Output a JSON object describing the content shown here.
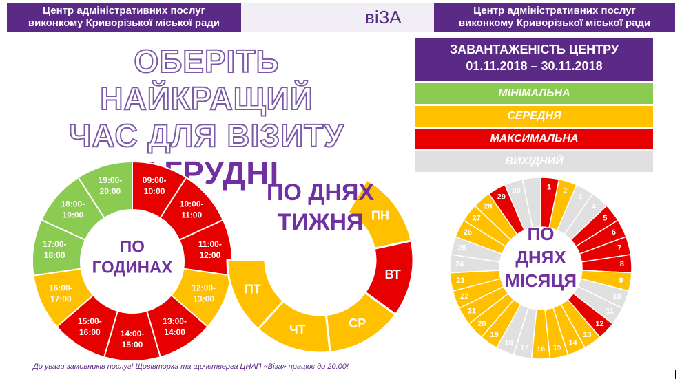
{
  "header": {
    "left_line1": "Центр адміністративних послуг",
    "left_line2": "виконкому Криворізької міської ради",
    "brand": "віЗА",
    "right_line1": "Центр адміністративних послуг",
    "right_line2": "виконкому Криворізької міської ради"
  },
  "title": {
    "line1": "ОБЕРІТЬ НАЙКРАЩИЙ",
    "line2": "ЧАС ДЛЯ ВІЗИТУ",
    "line3": "У ГРУДНІ"
  },
  "legend": {
    "heading_line1": "ЗАВАНТАЖЕНІСТЬ ЦЕНТРУ",
    "heading_line2": "01.11.2018 – 30.11.2018",
    "levels": [
      {
        "label": "МІНІМАЛЬНА",
        "color": "#8ccb52"
      },
      {
        "label": "СЕРЕДНЯ",
        "color": "#ffc000"
      },
      {
        "label": "МАКСИМАЛЬНА",
        "color": "#e60000"
      },
      {
        "label": "ВИХІДНИЙ",
        "color": "#e0e0e0"
      }
    ]
  },
  "colors": {
    "min": "#8ccb52",
    "mid": "#ffc000",
    "max": "#e60000",
    "off": "#e0e0e0",
    "purple": "#7030a0"
  },
  "hours": {
    "center_line1": "ПО",
    "center_line2": "ГОДИНАХ",
    "slots": [
      {
        "l1": "09:00-",
        "l2": "10:00",
        "level": "max"
      },
      {
        "l1": "10:00-",
        "l2": "11:00",
        "level": "max"
      },
      {
        "l1": "11:00-",
        "l2": "12:00",
        "level": "max"
      },
      {
        "l1": "12:00-",
        "l2": "13:00",
        "level": "mid"
      },
      {
        "l1": "13:00-",
        "l2": "14:00",
        "level": "max"
      },
      {
        "l1": "14:00-",
        "l2": "15:00",
        "level": "max"
      },
      {
        "l1": "15:00-",
        "l2": "16:00",
        "level": "max"
      },
      {
        "l1": "16:00-",
        "l2": "17:00",
        "level": "mid"
      },
      {
        "l1": "17:00-",
        "l2": "18:00",
        "level": "min"
      },
      {
        "l1": "18:00-",
        "l2": "19:00",
        "level": "min"
      },
      {
        "l1": "19:00-",
        "l2": "20:00",
        "level": "min"
      }
    ]
  },
  "weekdays": {
    "title_line1": "ПО ДНЯХ",
    "title_line2": "ТИЖНЯ",
    "days": [
      {
        "label": "ПН",
        "level": "mid"
      },
      {
        "label": "ВТ",
        "level": "max"
      },
      {
        "label": "СР",
        "level": "mid"
      },
      {
        "label": "ЧТ",
        "level": "mid"
      },
      {
        "label": "ПТ",
        "level": "mid"
      }
    ]
  },
  "month": {
    "center_line1": "ПО",
    "center_line2": "ДНЯХ",
    "center_line3": "МІСЯЦЯ",
    "days": [
      {
        "label": "1",
        "level": "max"
      },
      {
        "label": "2",
        "level": "mid"
      },
      {
        "label": "3",
        "level": "off"
      },
      {
        "label": "4",
        "level": "off"
      },
      {
        "label": "5",
        "level": "max"
      },
      {
        "label": "6",
        "level": "max"
      },
      {
        "label": "7",
        "level": "max"
      },
      {
        "label": "8",
        "level": "max"
      },
      {
        "label": "9",
        "level": "mid"
      },
      {
        "label": "10",
        "level": "off"
      },
      {
        "label": "11",
        "level": "off"
      },
      {
        "label": "12",
        "level": "max"
      },
      {
        "label": "13",
        "level": "mid"
      },
      {
        "label": "14",
        "level": "mid"
      },
      {
        "label": "15",
        "level": "mid"
      },
      {
        "label": "16",
        "level": "mid"
      },
      {
        "label": "17",
        "level": "off"
      },
      {
        "label": "18",
        "level": "off"
      },
      {
        "label": "19",
        "level": "mid"
      },
      {
        "label": "20",
        "level": "mid"
      },
      {
        "label": "21",
        "level": "mid"
      },
      {
        "label": "22",
        "level": "mid"
      },
      {
        "label": "23",
        "level": "mid"
      },
      {
        "label": "24",
        "level": "off"
      },
      {
        "label": "25",
        "level": "off"
      },
      {
        "label": "26",
        "level": "mid"
      },
      {
        "label": "27",
        "level": "mid"
      },
      {
        "label": "28",
        "level": "mid"
      },
      {
        "label": "29",
        "level": "max"
      },
      {
        "label": "30",
        "level": "off"
      },
      {
        "label": "",
        "level": "off"
      }
    ]
  },
  "footer": "До уваги замовників послуг!  Щовівторка та щочетверга ЦНАП «Віза» працює до 20.00!"
}
